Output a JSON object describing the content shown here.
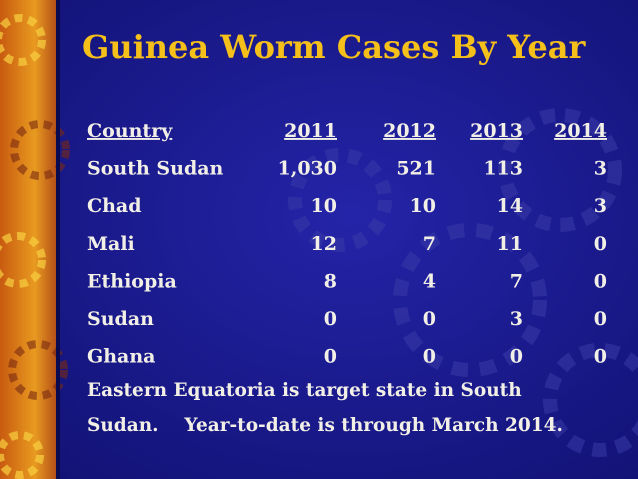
{
  "slide": {
    "title": "Guinea Worm Cases By Year",
    "table": {
      "header": [
        "Country",
        "2011",
        "2012",
        "2013",
        "2014"
      ],
      "rows": [
        [
          "South Sudan",
          "1,030",
          "521",
          "113",
          "3"
        ],
        [
          "Chad",
          "10",
          "10",
          "14",
          "3"
        ],
        [
          "Mali",
          "12",
          "7",
          "11",
          "0"
        ],
        [
          "Ethiopia",
          "8",
          "4",
          "7",
          "0"
        ],
        [
          "Sudan",
          "0",
          "0",
          "3",
          "0"
        ],
        [
          "Ghana",
          "0",
          "0",
          "0",
          "0"
        ]
      ]
    },
    "footnote": [
      "Eastern Equatoria is target state in South",
      "Sudan.    Year-to-date is through March 2014."
    ]
  }
}
